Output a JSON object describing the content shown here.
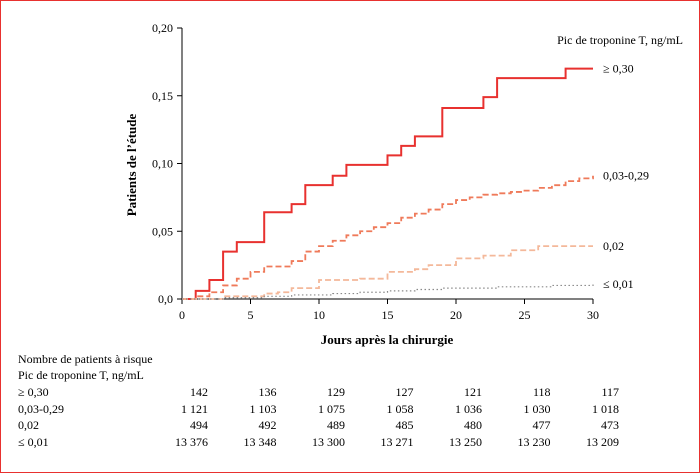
{
  "chart_data": {
    "type": "line",
    "title": "",
    "xlabel": "Jours après la chirurgie",
    "ylabel": "Patients de l’étude",
    "xlim": [
      0,
      30
    ],
    "ylim": [
      0,
      0.2
    ],
    "x_ticks": [
      "0",
      "5",
      "10",
      "15",
      "20",
      "25",
      "30"
    ],
    "y_ticks": [
      "0,0",
      "0,05",
      "0,10",
      "0,15",
      "0,20"
    ],
    "legend_title": "Pic de troponine T, ng/mL",
    "grid": false,
    "series": [
      {
        "name": "≥ 0,30",
        "color": "#e8312f",
        "dash": "solid",
        "steps": [
          [
            0,
            0
          ],
          [
            1,
            0.006
          ],
          [
            2,
            0.014
          ],
          [
            3,
            0.035
          ],
          [
            4,
            0.042
          ],
          [
            6,
            0.064
          ],
          [
            8,
            0.07
          ],
          [
            9,
            0.084
          ],
          [
            11,
            0.091
          ],
          [
            12,
            0.099
          ],
          [
            15,
            0.106
          ],
          [
            16,
            0.113
          ],
          [
            17,
            0.12
          ],
          [
            19,
            0.141
          ],
          [
            22,
            0.149
          ],
          [
            23,
            0.163
          ],
          [
            28,
            0.17
          ],
          [
            30,
            0.17
          ]
        ]
      },
      {
        "name": "0,03-0,29",
        "color": "#ef7a5a",
        "dash": "dashed",
        "steps": [
          [
            0,
            0
          ],
          [
            1,
            0.002
          ],
          [
            2,
            0.005
          ],
          [
            3,
            0.01
          ],
          [
            4,
            0.015
          ],
          [
            5,
            0.02
          ],
          [
            6,
            0.024
          ],
          [
            8,
            0.028
          ],
          [
            9,
            0.035
          ],
          [
            10,
            0.039
          ],
          [
            11,
            0.043
          ],
          [
            12,
            0.047
          ],
          [
            13,
            0.05
          ],
          [
            14,
            0.053
          ],
          [
            15,
            0.056
          ],
          [
            16,
            0.06
          ],
          [
            17,
            0.063
          ],
          [
            18,
            0.066
          ],
          [
            19,
            0.07
          ],
          [
            20,
            0.073
          ],
          [
            21,
            0.075
          ],
          [
            22,
            0.077
          ],
          [
            23,
            0.078
          ],
          [
            24,
            0.079
          ],
          [
            25,
            0.08
          ],
          [
            26,
            0.082
          ],
          [
            27,
            0.084
          ],
          [
            28,
            0.087
          ],
          [
            29,
            0.089
          ],
          [
            30,
            0.091
          ]
        ]
      },
      {
        "name": "0,02",
        "color": "#f4b89a",
        "dash": "dashed",
        "steps": [
          [
            0,
            0
          ],
          [
            3,
            0.002
          ],
          [
            6,
            0.004
          ],
          [
            7,
            0.005
          ],
          [
            8,
            0.008
          ],
          [
            10,
            0.014
          ],
          [
            13,
            0.015
          ],
          [
            15,
            0.02
          ],
          [
            17,
            0.022
          ],
          [
            18,
            0.025
          ],
          [
            20,
            0.03
          ],
          [
            22,
            0.032
          ],
          [
            24,
            0.036
          ],
          [
            26,
            0.039
          ],
          [
            30,
            0.039
          ]
        ]
      },
      {
        "name": "≤ 0,01",
        "color": "#8a8a8a",
        "dash": "dotted",
        "steps": [
          [
            0,
            0
          ],
          [
            3,
            0.001
          ],
          [
            6,
            0.002
          ],
          [
            8,
            0.003
          ],
          [
            11,
            0.004
          ],
          [
            13,
            0.005
          ],
          [
            15,
            0.006
          ],
          [
            17,
            0.007
          ],
          [
            19,
            0.008
          ],
          [
            23,
            0.009
          ],
          [
            27,
            0.01
          ],
          [
            30,
            0.011
          ]
        ]
      }
    ]
  },
  "risk_table": {
    "title": "Nombre de patients à risque",
    "subtitle": "Pic de troponine T, ng/mL",
    "rows": [
      {
        "label": "≥ 0,30",
        "values": [
          "142",
          "136",
          "129",
          "127",
          "121",
          "118",
          "117"
        ]
      },
      {
        "label": "0,03-0,29",
        "values": [
          "1 121",
          "1 103",
          "1 075",
          "1 058",
          "1 036",
          "1 030",
          "1 018"
        ]
      },
      {
        "label": "0,02",
        "values": [
          "494",
          "492",
          "489",
          "485",
          "480",
          "477",
          "473"
        ]
      },
      {
        "label": "≤ 0,01",
        "values": [
          "13 376",
          "13 348",
          "13 300",
          "13 271",
          "13 250",
          "13 230",
          "13 209"
        ]
      }
    ]
  }
}
